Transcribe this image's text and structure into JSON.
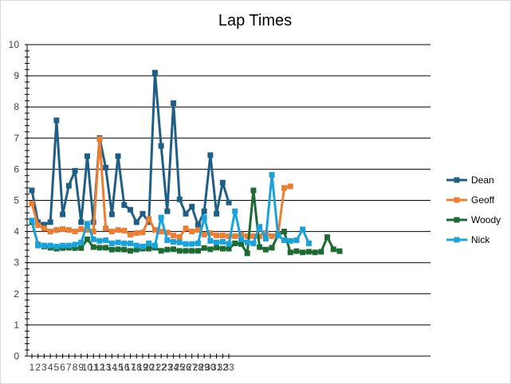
{
  "chart_data": {
    "type": "line",
    "title": "Lap Times",
    "xlabel": "",
    "ylabel": "",
    "ylim": [
      0,
      10
    ],
    "y_ticks": [
      0,
      1,
      2,
      3,
      4,
      5,
      6,
      7,
      8,
      9,
      10
    ],
    "x_tick_labels": [
      "1",
      "2",
      "3",
      "4",
      "5",
      "6",
      "7",
      "8",
      "9",
      "10",
      "11",
      "12",
      "13",
      "14",
      "15",
      "16",
      "17",
      "18",
      "19",
      "20",
      "21",
      "22",
      "23",
      "24",
      "25",
      "26",
      "27",
      "28",
      "29",
      "30",
      "31",
      "32",
      "33"
    ],
    "grid": "horizontal",
    "legend_position": "right",
    "series": [
      {
        "name": "Dean",
        "color": "#1f5f86",
        "values": [
          5.32,
          4.3,
          4.22,
          4.3,
          7.57,
          4.55,
          5.47,
          5.95,
          4.3,
          6.42,
          4.3,
          7.0,
          6.05,
          4.55,
          6.42,
          4.85,
          4.7,
          4.3,
          4.57,
          4.3,
          9.1,
          6.75,
          4.65,
          8.12,
          5.03,
          4.57,
          4.8,
          4.2,
          4.65,
          6.45,
          4.57,
          5.57,
          4.93
        ]
      },
      {
        "name": "Geoff",
        "color": "#ed7d31",
        "values": [
          4.9,
          4.2,
          4.1,
          4.0,
          4.05,
          4.08,
          4.05,
          4.0,
          4.08,
          4.05,
          4.0,
          6.97,
          4.1,
          4.0,
          4.05,
          4.03,
          3.9,
          3.95,
          3.97,
          4.4,
          4.05,
          4.0,
          3.97,
          3.87,
          3.82,
          4.1,
          4.0,
          4.05,
          3.9,
          3.95,
          3.87,
          3.87,
          3.85,
          3.85,
          3.9,
          3.85,
          3.85,
          3.85,
          3.95,
          3.85,
          3.9,
          5.4,
          5.45
        ]
      },
      {
        "name": "Woody",
        "color": "#1d6b32",
        "values": [
          4.3,
          3.58,
          3.52,
          3.48,
          3.45,
          3.47,
          3.48,
          3.47,
          3.47,
          3.75,
          3.5,
          3.48,
          3.48,
          3.42,
          3.43,
          3.42,
          3.38,
          3.42,
          3.45,
          3.45,
          3.48,
          3.38,
          3.42,
          3.43,
          3.38,
          3.38,
          3.38,
          3.38,
          3.47,
          3.43,
          3.48,
          3.45,
          3.45,
          3.62,
          3.6,
          3.3,
          5.32,
          3.5,
          3.42,
          3.48,
          3.88,
          4.0,
          3.33,
          3.37,
          3.33,
          3.35,
          3.33,
          3.35,
          3.82,
          3.43,
          3.37
        ]
      },
      {
        "name": "Nick",
        "color": "#1aa2db",
        "values": [
          4.35,
          3.55,
          3.55,
          3.55,
          3.52,
          3.55,
          3.55,
          3.58,
          3.65,
          4.25,
          3.75,
          3.7,
          3.72,
          3.62,
          3.65,
          3.62,
          3.62,
          3.55,
          3.52,
          3.62,
          3.55,
          4.45,
          3.72,
          3.67,
          3.65,
          3.6,
          3.6,
          3.62,
          4.45,
          3.7,
          3.65,
          3.67,
          3.6,
          4.65,
          3.75,
          3.65,
          3.62,
          4.15,
          3.77,
          5.82,
          3.87,
          3.72,
          3.7,
          3.72,
          4.07,
          3.62
        ]
      }
    ]
  }
}
